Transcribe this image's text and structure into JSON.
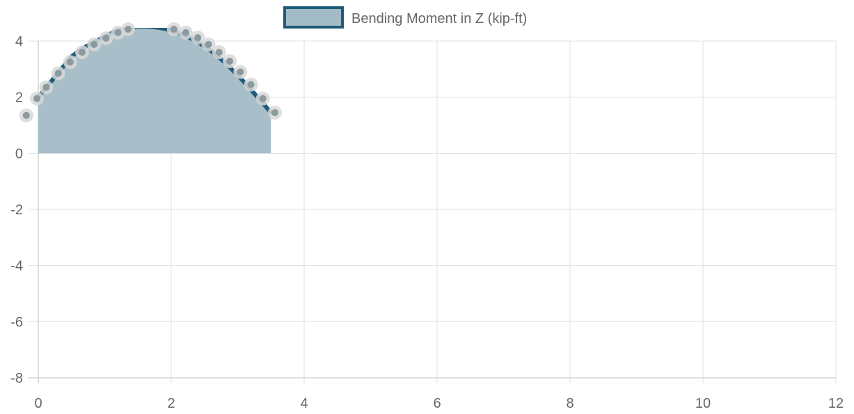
{
  "chart_data": {
    "type": "area",
    "legend": {
      "label": "Bending Moment in Z (kip-ft)",
      "position": "top-center"
    },
    "colors": {
      "line": "#1f5b78",
      "fill": "#a3bbc6",
      "fill_opacity": "0.95",
      "point": "#8a9a9f",
      "point_halo": "#d8d8d8",
      "grid": "#e1e1e1",
      "axis": "#bdbdbd"
    },
    "grid": true,
    "xlim": [
      0,
      12
    ],
    "ylim": [
      -8,
      4
    ],
    "x_ticks": [
      0,
      2,
      4,
      6,
      8,
      10,
      12
    ],
    "y_ticks": [
      4,
      2,
      0,
      -2,
      -4,
      -6,
      -8
    ],
    "x_tick_labels": [
      "0",
      "2",
      "4",
      "6",
      "8",
      "10",
      "12"
    ],
    "y_tick_labels": [
      "4",
      "2",
      "0",
      "-2",
      "-4",
      "-6",
      "-8"
    ],
    "series": [
      {
        "name": "Bending Moment in Z (kip-ft)",
        "x": [
          0,
          0.1,
          0.2,
          0.3,
          0.4,
          0.5,
          0.6,
          0.7,
          0.8,
          0.9,
          1.0,
          1.1,
          1.2,
          1.3,
          1.4,
          1.5,
          1.6,
          1.7,
          1.8,
          1.9,
          2.0,
          2.1,
          2.2,
          2.3,
          2.4,
          2.5,
          2.6,
          2.7,
          2.8,
          2.9,
          3.0,
          3.1,
          3.2,
          3.3,
          3.4,
          3.5
        ],
        "y": [
          2.0,
          2.29,
          2.58,
          2.87,
          3.16,
          3.45,
          3.62,
          3.78,
          3.92,
          4.04,
          4.16,
          4.28,
          4.38,
          4.45,
          4.5,
          4.52,
          4.52,
          4.51,
          4.48,
          4.44,
          4.38,
          4.3,
          4.2,
          4.09,
          3.96,
          3.82,
          3.65,
          3.46,
          3.25,
          3.02,
          2.78,
          2.53,
          2.27,
          2.0,
          1.73,
          1.45
        ]
      }
    ],
    "points": [
      {
        "x": -0.18,
        "y": 1.35
      },
      {
        "x": -0.02,
        "y": 1.95
      },
      {
        "x": 0.12,
        "y": 2.35
      },
      {
        "x": 0.3,
        "y": 2.85
      },
      {
        "x": 0.48,
        "y": 3.25
      },
      {
        "x": 0.66,
        "y": 3.6
      },
      {
        "x": 0.84,
        "y": 3.88
      },
      {
        "x": 1.02,
        "y": 4.1
      },
      {
        "x": 1.2,
        "y": 4.3
      },
      {
        "x": 1.35,
        "y": 4.42
      },
      {
        "x": 2.04,
        "y": 4.42
      },
      {
        "x": 2.22,
        "y": 4.3
      },
      {
        "x": 2.4,
        "y": 4.12
      },
      {
        "x": 2.56,
        "y": 3.88
      },
      {
        "x": 2.72,
        "y": 3.6
      },
      {
        "x": 2.88,
        "y": 3.28
      },
      {
        "x": 3.04,
        "y": 2.9
      },
      {
        "x": 3.2,
        "y": 2.45
      },
      {
        "x": 3.38,
        "y": 1.95
      },
      {
        "x": 3.56,
        "y": 1.45
      }
    ]
  }
}
